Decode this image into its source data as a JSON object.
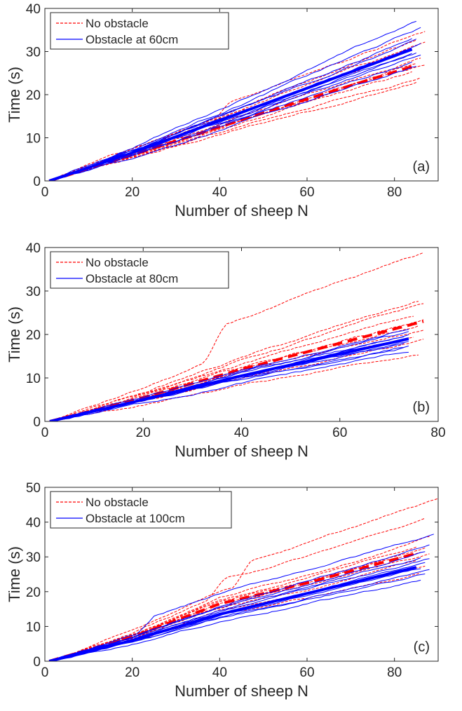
{
  "chart_data": [
    {
      "type": "line",
      "panel_label": "(a)",
      "xlabel": "Number of sheep N",
      "ylabel": "Time (s)",
      "xlim": [
        0,
        90
      ],
      "ylim": [
        0,
        40
      ],
      "xticks": [
        0,
        20,
        40,
        60,
        80
      ],
      "yticks": [
        0,
        10,
        20,
        30,
        40
      ],
      "grid": false,
      "legend_position": "top-left",
      "series": [
        {
          "name": "No obstacle",
          "color": "#ff0000",
          "style": "dashed",
          "mean_x": [
            1,
            20,
            40,
            60,
            84
          ],
          "mean_y": [
            0,
            6,
            12.5,
            19,
            26.5
          ],
          "runs_end_y": [
            22.5,
            23.5,
            25,
            26,
            27,
            28,
            30,
            31,
            32.5,
            33.5
          ],
          "runs_end_x": [
            85,
            86,
            84,
            87,
            85,
            86,
            84,
            87,
            85,
            87
          ]
        },
        {
          "name": "Obstacle at 60cm",
          "color": "#0000ff",
          "style": "solid",
          "mean_x": [
            1,
            20,
            40,
            60,
            84
          ],
          "mean_y": [
            0,
            6.5,
            14,
            21.5,
            30.5
          ],
          "runs_end_y": [
            26,
            27.5,
            28.5,
            29.5,
            30,
            31,
            32,
            33,
            34.5,
            36.5
          ],
          "runs_end_x": [
            85,
            84,
            86,
            85,
            84,
            86,
            85,
            84,
            86,
            85
          ]
        }
      ]
    },
    {
      "type": "line",
      "panel_label": "(b)",
      "xlabel": "Number of sheep N",
      "ylabel": "Time (s)",
      "xlim": [
        0,
        80
      ],
      "ylim": [
        0,
        40
      ],
      "xticks": [
        0,
        20,
        40,
        60,
        80
      ],
      "yticks": [
        0,
        10,
        20,
        30,
        40
      ],
      "grid": false,
      "legend_position": "top-left",
      "series": [
        {
          "name": "No obstacle",
          "color": "#ff0000",
          "style": "dashed",
          "mean_x": [
            1,
            20,
            40,
            60,
            77
          ],
          "mean_y": [
            0,
            5.5,
            12,
            18,
            23
          ],
          "runs_end_y": [
            16,
            18.5,
            20,
            21.5,
            22.5,
            23.5,
            25,
            27,
            28,
            38.5
          ],
          "runs_end_x": [
            76,
            77,
            75,
            77,
            76,
            77,
            75,
            77,
            76,
            77
          ]
        },
        {
          "name": "Obstacle at 80cm",
          "color": "#0000ff",
          "style": "solid",
          "mean_x": [
            1,
            20,
            40,
            60,
            74
          ],
          "mean_y": [
            0,
            5,
            10.5,
            15.5,
            19
          ],
          "runs_end_y": [
            16,
            17,
            17.5,
            18,
            18.5,
            19,
            19.5,
            20,
            20.5,
            21.5
          ],
          "runs_end_x": [
            74,
            73,
            74,
            74,
            73,
            74,
            74,
            73,
            74,
            74
          ]
        }
      ]
    },
    {
      "type": "line",
      "panel_label": "(c)",
      "xlabel": "Number of sheep N",
      "ylabel": "Time (s)",
      "xlim": [
        0,
        90
      ],
      "ylim": [
        0,
        50
      ],
      "xticks": [
        0,
        20,
        40,
        60,
        80
      ],
      "yticks": [
        0,
        10,
        20,
        30,
        40,
        50
      ],
      "grid": false,
      "legend_position": "top-left",
      "series": [
        {
          "name": "No obstacle",
          "color": "#ff0000",
          "style": "dashed",
          "mean_x": [
            1,
            20,
            40,
            60,
            85
          ],
          "mean_y": [
            0,
            7,
            16.5,
            22.5,
            31
          ],
          "runs_end_y": [
            25,
            27,
            28.5,
            30,
            31,
            32,
            33,
            34.5,
            40,
            44.5
          ],
          "runs_end_x": [
            86,
            87,
            85,
            88,
            86,
            87,
            85,
            88,
            87,
            90
          ]
        },
        {
          "name": "Obstacle at 100cm",
          "color": "#0000ff",
          "style": "solid",
          "mean_x": [
            1,
            20,
            40,
            60,
            85
          ],
          "mean_y": [
            0,
            6,
            13.5,
            19.5,
            27
          ],
          "runs_end_y": [
            23,
            24.5,
            25.5,
            26.5,
            27.5,
            28.5,
            29.5,
            30.5,
            32,
            35
          ],
          "runs_end_x": [
            86,
            87,
            88,
            86,
            87,
            88,
            86,
            87,
            88,
            89
          ]
        }
      ]
    }
  ]
}
